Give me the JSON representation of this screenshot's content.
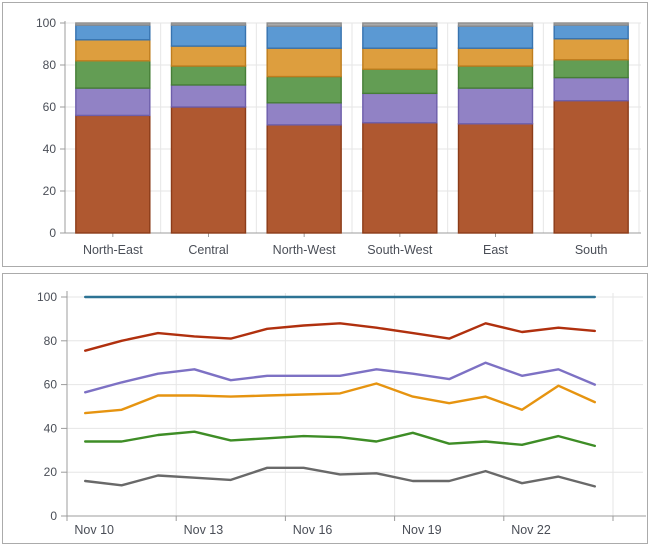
{
  "chart_data": [
    {
      "type": "bar",
      "stacked": true,
      "title": "",
      "xlabel": "",
      "ylabel": "",
      "categories": [
        "North-East",
        "Central",
        "North-West",
        "South-West",
        "East",
        "South"
      ],
      "series": [
        {
          "name": "rust",
          "color": "#af5830",
          "border": "#8c3c19",
          "values": [
            56,
            60,
            51.5,
            52.5,
            52,
            63
          ]
        },
        {
          "name": "purple",
          "color": "#9182c5",
          "border": "#6d5eaa",
          "values": [
            13,
            10.5,
            10.5,
            14,
            17,
            11
          ]
        },
        {
          "name": "green",
          "color": "#639d54",
          "border": "#467e37",
          "values": [
            13,
            9,
            12.5,
            11.5,
            10.5,
            8.5
          ]
        },
        {
          "name": "orange",
          "color": "#dd9e3e",
          "border": "#be7d1e",
          "values": [
            10,
            9.5,
            13.5,
            10,
            8.5,
            10
          ]
        },
        {
          "name": "blue",
          "color": "#5b99d3",
          "border": "#3773af",
          "values": [
            7,
            10,
            10.5,
            10.5,
            10.5,
            6.5
          ]
        },
        {
          "name": "gray",
          "color": "#aaaaaa",
          "border": "#8d8d8d",
          "values": [
            1,
            1,
            1.5,
            1.5,
            1.5,
            1
          ]
        }
      ],
      "ylim": [
        0,
        100
      ],
      "yticks": [
        0,
        20,
        40,
        60,
        80,
        100
      ],
      "grid": true,
      "legend": "none"
    },
    {
      "type": "line",
      "title": "",
      "xlabel": "",
      "ylabel": "",
      "x": [
        "Nov 10",
        "Nov 11",
        "Nov 12",
        "Nov 13",
        "Nov 14",
        "Nov 15",
        "Nov 16",
        "Nov 17",
        "Nov 18",
        "Nov 19",
        "Nov 20",
        "Nov 21",
        "Nov 22",
        "Nov 23",
        "Nov 24"
      ],
      "xtick_labels": [
        "Nov 10",
        "Nov 13",
        "Nov 16",
        "Nov 19",
        "Nov 22"
      ],
      "xtick_every": 3,
      "series": [
        {
          "name": "blue",
          "color": "#2d7394",
          "values": [
            100,
            100,
            100,
            100,
            100,
            100,
            100,
            100,
            100,
            100,
            100,
            100,
            100,
            100,
            100
          ]
        },
        {
          "name": "red",
          "color": "#b0300e",
          "values": [
            75.5,
            80,
            83.5,
            82,
            81,
            85.5,
            87,
            88,
            86,
            83.5,
            81,
            88,
            84,
            86,
            84.5
          ]
        },
        {
          "name": "purple",
          "color": "#7d71c4",
          "values": [
            56.5,
            61,
            65,
            67,
            62,
            64,
            64,
            64,
            67,
            65,
            62.5,
            70,
            64,
            67,
            60
          ]
        },
        {
          "name": "orange",
          "color": "#e69410",
          "values": [
            47,
            48.5,
            55,
            55,
            54.5,
            55,
            55.5,
            56,
            60.5,
            54.5,
            51.5,
            54.5,
            48.5,
            59.5,
            52
          ]
        },
        {
          "name": "green",
          "color": "#3e8d26",
          "values": [
            34,
            34,
            37,
            38.5,
            34.5,
            35.5,
            36.5,
            36,
            34,
            38,
            33,
            34,
            32.5,
            36.5,
            32
          ]
        },
        {
          "name": "gray",
          "color": "#696969",
          "values": [
            16,
            14,
            18.5,
            17.5,
            16.5,
            22,
            22,
            19,
            19.5,
            16,
            16,
            20.5,
            15,
            18,
            13.5
          ]
        }
      ],
      "ylim": [
        0,
        100
      ],
      "yticks": [
        0,
        20,
        40,
        60,
        80,
        100
      ],
      "grid": true,
      "legend": "none"
    }
  ],
  "style": {
    "grid_color": "#e6e6e6",
    "axis_color": "#9c9c9c",
    "tick_label_color": "#4a4e57"
  }
}
